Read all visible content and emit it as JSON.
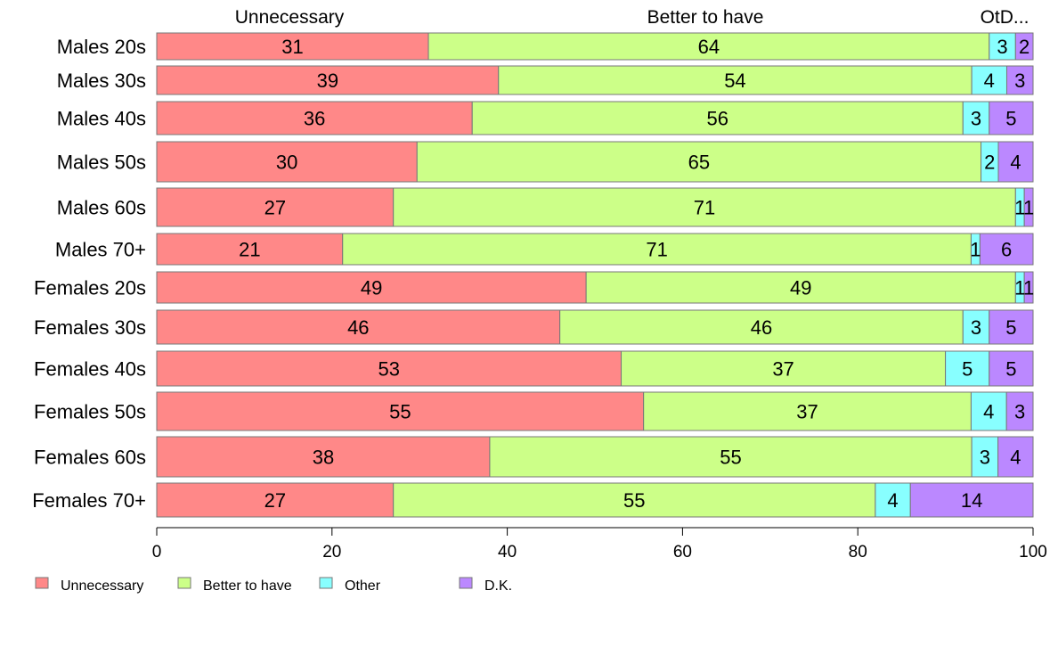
{
  "chart_data": {
    "type": "bar",
    "orientation": "horizontal",
    "stacked": true,
    "normalized_percent": true,
    "categories": [
      "Males 20s",
      "Males 30s",
      "Males 40s",
      "Males 50s",
      "Males 60s",
      "Males 70+",
      "Females 20s",
      "Females 30s",
      "Females 40s",
      "Females 50s",
      "Females 60s",
      "Females 70+"
    ],
    "series": [
      {
        "name": "Unnecessary",
        "color": "#FF8888",
        "values": [
          31,
          39,
          36,
          30,
          27,
          21,
          49,
          46,
          53,
          55,
          38,
          27
        ]
      },
      {
        "name": "Better to have",
        "color": "#CCFF88",
        "values": [
          64,
          54,
          56,
          65,
          71,
          71,
          49,
          46,
          37,
          37,
          55,
          55
        ]
      },
      {
        "name": "Other",
        "color": "#88FFFF",
        "values": [
          3,
          4,
          3,
          2,
          1,
          1,
          1,
          3,
          5,
          4,
          3,
          4
        ]
      },
      {
        "name": "D.K.",
        "color": "#BB88FF",
        "values": [
          2,
          3,
          5,
          4,
          1,
          6,
          1,
          5,
          5,
          3,
          4,
          14
        ]
      }
    ],
    "top_labels": [
      "Unnecessary",
      "Better to have",
      "OtD..."
    ],
    "xlim": [
      0,
      100
    ],
    "xticks": [
      "0",
      "20",
      "40",
      "60",
      "80",
      "100"
    ],
    "grid": false,
    "legend_position": "bottom-left",
    "title": "",
    "xlabel": "",
    "ylabel": ""
  }
}
